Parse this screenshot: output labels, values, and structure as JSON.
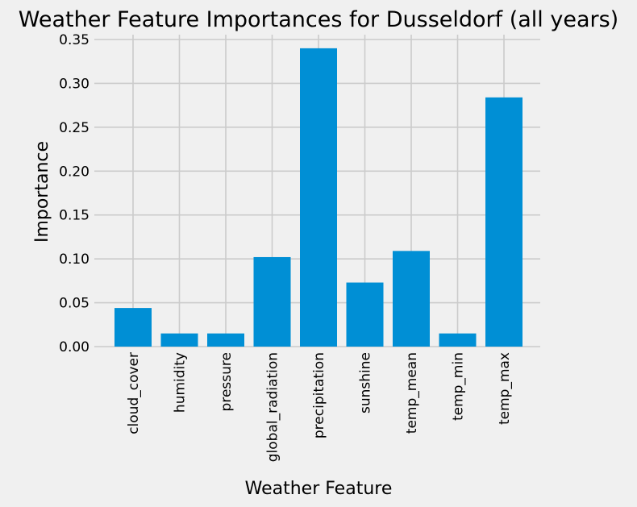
{
  "chart_data": {
    "type": "bar",
    "title": "Weather Feature Importances for Dusseldorf (all years)",
    "xlabel": "Weather Feature",
    "ylabel": "Importance",
    "categories": [
      "cloud_cover",
      "humidity",
      "pressure",
      "global_radiation",
      "precipitation",
      "sunshine",
      "temp_mean",
      "temp_min",
      "temp_max"
    ],
    "values": [
      0.044,
      0.015,
      0.015,
      0.102,
      0.34,
      0.073,
      0.109,
      0.015,
      0.284
    ],
    "ylim": [
      0,
      0.35
    ],
    "yticks": [
      "0.00",
      "0.05",
      "0.10",
      "0.15",
      "0.20",
      "0.25",
      "0.30",
      "0.35"
    ],
    "grid": true,
    "bar_color": "#008fd5",
    "background_color": "#f0f0f0"
  }
}
